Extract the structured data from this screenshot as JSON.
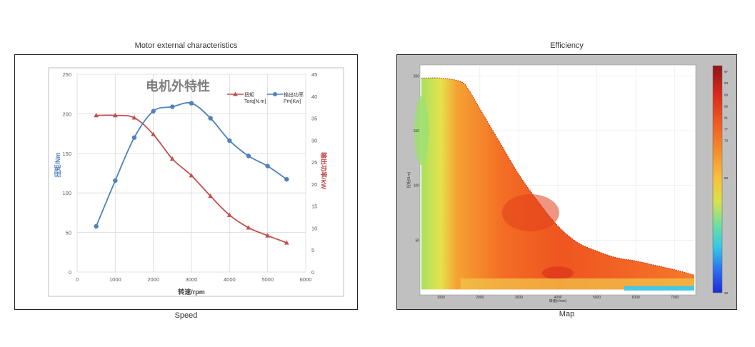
{
  "panels": {
    "left": {
      "title": "Motor external characteristics",
      "caption": "Speed"
    },
    "right": {
      "title": "Efficiency",
      "caption": "Map"
    }
  },
  "colors": {
    "torque": "#c0504d",
    "power": "#4f81bd",
    "grid": "#d9d9d9",
    "map_bg": "#c0c0c0"
  },
  "chart_data": [
    {
      "type": "line",
      "title": "电机外特性",
      "xlabel": "转速/rpm",
      "ylabel": "扭矩/Nm",
      "y2label": "输出功率/kW",
      "xlim": [
        0,
        6000
      ],
      "ylim": [
        0,
        250
      ],
      "y2lim": [
        0,
        45
      ],
      "xticks": [
        0,
        1000,
        2000,
        3000,
        4000,
        5000,
        6000
      ],
      "yticks": [
        0,
        50,
        100,
        150,
        200,
        250
      ],
      "y2ticks": [
        0,
        5,
        10,
        15,
        20,
        25,
        30,
        35,
        40,
        45
      ],
      "grid": true,
      "legend_position": "top-right",
      "series": [
        {
          "name": "扭矩",
          "unit": "Torq[N.m]",
          "axis": "left",
          "marker": "triangle",
          "x": [
            500,
            1000,
            1500,
            2000,
            2500,
            3000,
            3500,
            4000,
            4500,
            5000,
            5500
          ],
          "y": [
            198,
            198,
            195,
            174,
            143,
            122,
            96,
            72,
            56,
            46,
            37
          ]
        },
        {
          "name": "输出功率",
          "unit": "Pm[Kw]",
          "axis": "right",
          "marker": "circle",
          "x": [
            500,
            1000,
            1500,
            2000,
            2500,
            3000,
            3500,
            4000,
            4500,
            5000,
            5500
          ],
          "y": [
            10.4,
            20.8,
            30.6,
            36.6,
            37.6,
            38.4,
            35.0,
            29.9,
            26.4,
            24.1,
            21.1
          ]
        }
      ]
    },
    {
      "type": "heatmap",
      "xlabel": "转速(r/min)",
      "ylabel": "扭矩(N.m)",
      "xlim": [
        500,
        7500
      ],
      "ylim": [
        0,
        210
      ],
      "xticks": [
        1000,
        2000,
        3000,
        4000,
        5000,
        6000,
        7000
      ],
      "yticks": [
        50,
        100,
        150,
        200
      ],
      "colorbar_ticks": [
        20,
        60,
        73,
        77,
        81,
        85,
        89,
        93,
        97
      ],
      "legend_position": "right",
      "boundary": {
        "x": [
          500,
          1000,
          1500,
          1700,
          2000,
          2500,
          3000,
          3500,
          4000,
          4500,
          5000,
          5500,
          6000,
          6500,
          7000,
          7500
        ],
        "torque_max": [
          198,
          198,
          195,
          188,
          170,
          140,
          110,
          85,
          63,
          48,
          40,
          34,
          31,
          27,
          23,
          18
        ]
      }
    }
  ]
}
